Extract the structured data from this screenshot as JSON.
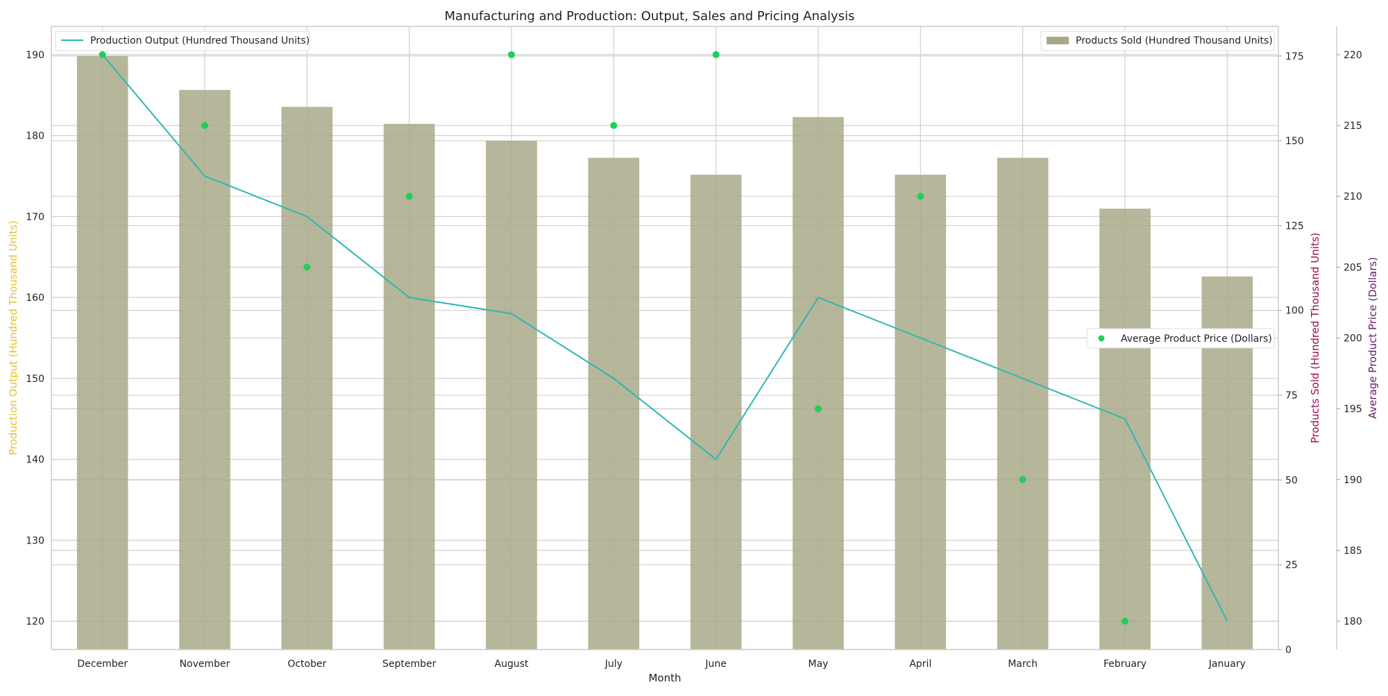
{
  "chart_data": {
    "type": "bar",
    "title": "Manufacturing and Production: Output, Sales and Pricing Analysis",
    "xlabel": "Month",
    "categories": [
      "December",
      "November",
      "October",
      "September",
      "August",
      "July",
      "June",
      "May",
      "April",
      "March",
      "February",
      "January"
    ],
    "axes": {
      "y_left": {
        "label": "Production Output (Hundred Thousand Units)",
        "range": [
          116.5,
          193.5
        ],
        "ticks": [
          120,
          130,
          140,
          150,
          160,
          170,
          180,
          190
        ],
        "color": "#e6c229"
      },
      "y_right": {
        "label": "Products Sold (Hundred Thousand Units)",
        "range": [
          0,
          183.75
        ],
        "ticks": [
          0,
          25,
          50,
          75,
          100,
          125,
          150,
          175
        ],
        "color": "#9e0b4e"
      },
      "y_right2": {
        "label": "Average Product Price (Dollars)",
        "range": [
          178,
          222
        ],
        "ticks": [
          180,
          185,
          190,
          195,
          200,
          205,
          210,
          215,
          220
        ],
        "color": "#6a1b6b"
      }
    },
    "grid": true,
    "series": [
      {
        "name": "Products Sold (Hundred Thousand Units)",
        "type": "bar",
        "axis": "y_right",
        "color": "#a9a98a",
        "values": [
          175,
          165,
          160,
          155,
          150,
          145,
          140,
          157,
          140,
          145,
          130,
          110
        ]
      },
      {
        "name": "Production Output (Hundred Thousand Units)",
        "type": "line",
        "axis": "y_left",
        "color": "#2ab7b2",
        "values": [
          190,
          175,
          170,
          160,
          158,
          150,
          140,
          160,
          155,
          150,
          145,
          120
        ]
      },
      {
        "name": "Average Product Price (Dollars)",
        "type": "scatter",
        "axis": "y_right2",
        "color": "#1ed05a",
        "values": [
          220,
          215,
          205,
          210,
          220,
          215,
          220,
          195,
          210,
          190,
          180,
          null
        ]
      }
    ],
    "legends": [
      {
        "series": "Production Output (Hundred Thousand Units)",
        "placement": "top-left"
      },
      {
        "series": "Products Sold (Hundred Thousand Units)",
        "placement": "top-right"
      },
      {
        "series": "Average Product Price (Dollars)",
        "placement": "center-right"
      }
    ]
  }
}
